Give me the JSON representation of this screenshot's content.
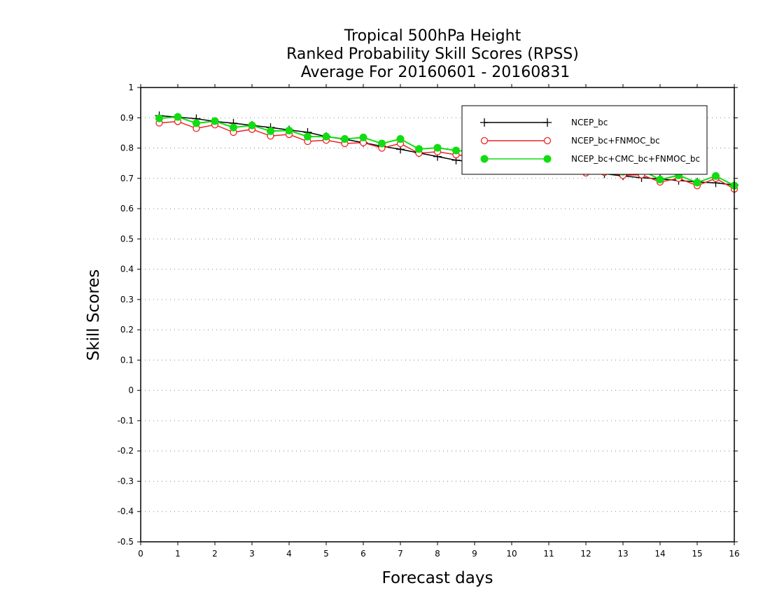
{
  "chart_data": {
    "type": "line",
    "title": [
      "Tropical 500hPa Height",
      "Ranked Probability Skill Scores (RPSS)",
      "Average For 20160601 - 20160831"
    ],
    "xlabel": "Forecast days",
    "ylabel": "Skill Scores",
    "xlim": [
      0,
      16
    ],
    "ylim": [
      -0.5,
      1
    ],
    "xticks": [
      "0",
      "1",
      "2",
      "3",
      "4",
      "5",
      "6",
      "7",
      "8",
      "9",
      "10",
      "11",
      "12",
      "13",
      "14",
      "15",
      "16"
    ],
    "yticks": [
      "-0.5",
      "-0.4",
      "-0.3",
      "-0.2",
      "-0.1",
      "0",
      "0.1",
      "0.2",
      "0.3",
      "0.4",
      "0.5",
      "0.6",
      "0.7",
      "0.8",
      "0.9",
      "1"
    ],
    "grid": "horizontal dotted",
    "legend_position": "top-right",
    "x": [
      0.5,
      1,
      1.5,
      2,
      2.5,
      3,
      3.5,
      4,
      4.5,
      5,
      5.5,
      6,
      6.5,
      7,
      7.5,
      8,
      8.5,
      9,
      9.5,
      10,
      10.5,
      11,
      11.5,
      12,
      12.5,
      13,
      13.5,
      14,
      14.5,
      15,
      15.5,
      16
    ],
    "series": [
      {
        "name": "NCEP_bc",
        "color": "#000000",
        "marker": "plus",
        "values": [
          0.907,
          0.902,
          0.897,
          0.888,
          0.882,
          0.875,
          0.868,
          0.86,
          0.852,
          0.838,
          0.829,
          0.818,
          0.806,
          0.796,
          0.784,
          0.772,
          0.76,
          0.754,
          0.748,
          0.742,
          0.737,
          0.732,
          0.727,
          0.722,
          0.715,
          0.708,
          0.702,
          0.698,
          0.693,
          0.688,
          0.685,
          0.678
        ]
      },
      {
        "name": "NCEP_bc+FNMOC_bc",
        "color": "#ee2222",
        "marker": "open-circle",
        "values": [
          0.883,
          0.888,
          0.865,
          0.877,
          0.852,
          0.862,
          0.84,
          0.845,
          0.822,
          0.826,
          0.815,
          0.818,
          0.8,
          0.815,
          0.783,
          0.788,
          0.778,
          0.77,
          0.768,
          0.762,
          0.755,
          0.75,
          0.741,
          0.718,
          0.72,
          0.71,
          0.712,
          0.688,
          0.7,
          0.676,
          0.7,
          0.665
        ]
      },
      {
        "name": "NCEP_bc+CMC_bc+FNMOC_bc",
        "color": "#11dd11",
        "marker": "filled-circle",
        "values": [
          0.898,
          0.903,
          0.882,
          0.889,
          0.868,
          0.875,
          0.856,
          0.858,
          0.838,
          0.838,
          0.83,
          0.835,
          0.815,
          0.83,
          0.797,
          0.801,
          0.792,
          0.787,
          0.784,
          0.778,
          0.771,
          0.764,
          0.755,
          0.737,
          0.736,
          0.722,
          0.727,
          0.696,
          0.71,
          0.686,
          0.708,
          0.676
        ]
      }
    ]
  }
}
